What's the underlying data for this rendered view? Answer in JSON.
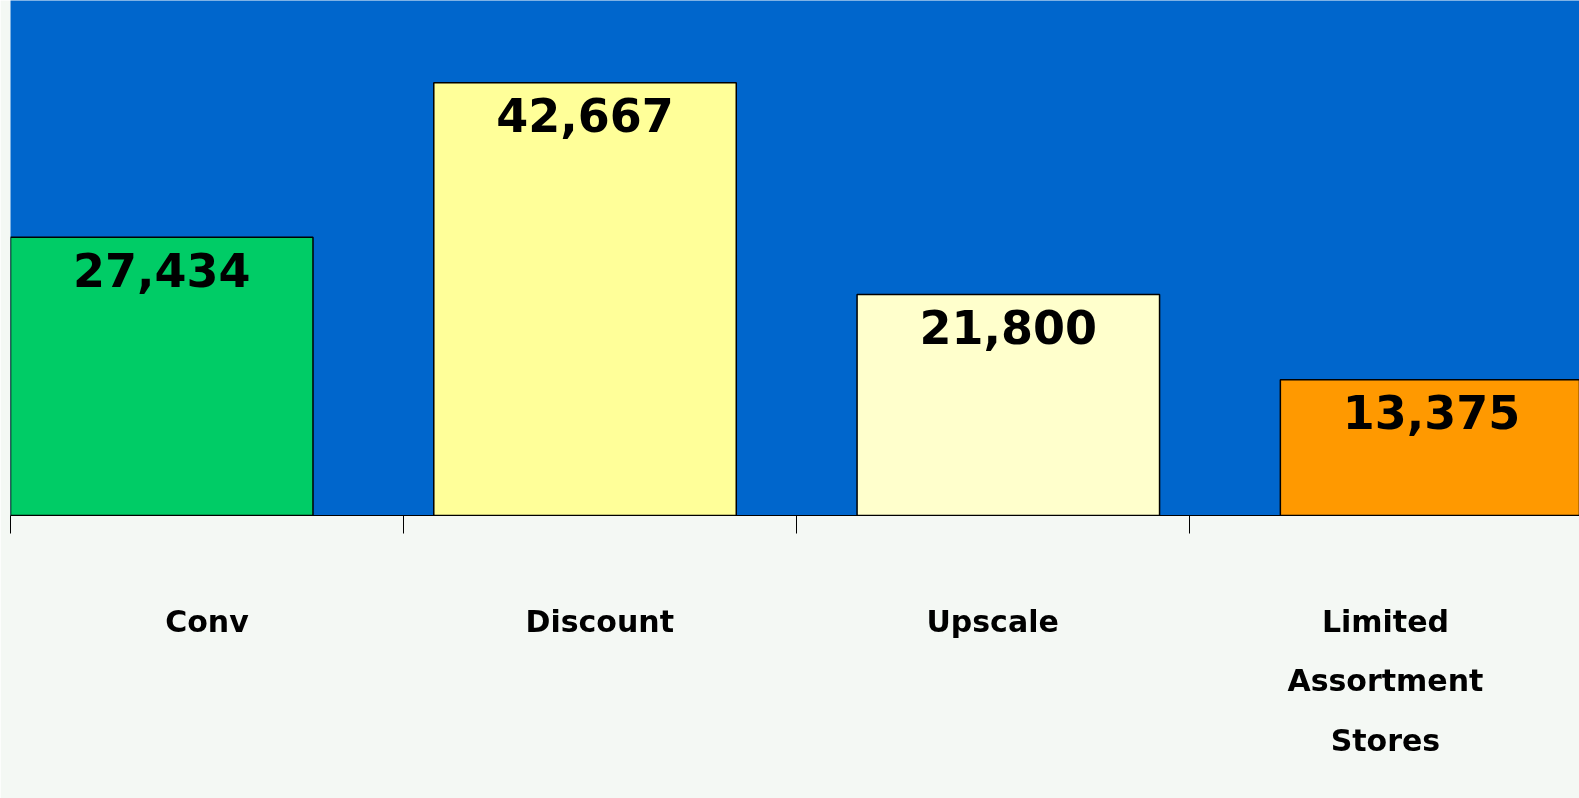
{
  "chart_data": {
    "type": "bar",
    "categories": [
      "Conv",
      "Discount",
      "Upscale",
      "Limited\nAssortment\nStores"
    ],
    "values": [
      27434,
      42667,
      21800,
      13375
    ],
    "colors": [
      "#00cc66",
      "#ffff99",
      "#ffffcc",
      "#ff9900"
    ],
    "value_labels": [
      "27,434",
      "42,667",
      "21,800",
      "13,375"
    ],
    "grid": false
  }
}
